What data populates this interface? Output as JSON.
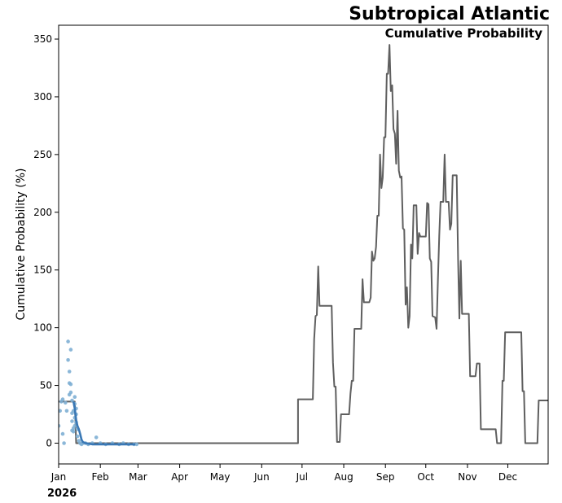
{
  "chart_data": {
    "type": "line",
    "title": "Subtropical Atlantic",
    "subtitle": "Cumulative Probability",
    "ylabel": "Cumulative Probability (%)",
    "xlabel": "",
    "year_label": "2026",
    "x_tick_labels": [
      "Jan",
      "Feb",
      "Mar",
      "Apr",
      "May",
      "Jun",
      "Jul",
      "Aug",
      "Sep",
      "Oct",
      "Nov",
      "Dec"
    ],
    "x_tick_days": [
      0,
      31,
      59,
      90,
      120,
      151,
      181,
      212,
      243,
      273,
      304,
      334
    ],
    "xlim": [
      0,
      364
    ],
    "ylim": [
      -18,
      362
    ],
    "y_ticks": [
      0,
      50,
      100,
      150,
      200,
      250,
      300,
      350
    ],
    "grid": false,
    "colors": {
      "climatology": "#5f5f5f",
      "forecast": "#3a78b5",
      "members": "#7eafd4"
    },
    "series": [
      {
        "style": "step-line",
        "points": [
          [
            0,
            36
          ],
          [
            12,
            36
          ],
          [
            13,
            0
          ],
          [
            178,
            0
          ],
          [
            178,
            38
          ],
          [
            189,
            38
          ],
          [
            190,
            90
          ],
          [
            191,
            110
          ],
          [
            192,
            111
          ],
          [
            193,
            153
          ],
          [
            194,
            119
          ],
          [
            203,
            119
          ],
          [
            204,
            70
          ],
          [
            205,
            49
          ],
          [
            206,
            49
          ],
          [
            207,
            1
          ],
          [
            209,
            1
          ],
          [
            210,
            25
          ],
          [
            216,
            25
          ],
          [
            217,
            43
          ],
          [
            218,
            54
          ],
          [
            219,
            54
          ],
          [
            220,
            99
          ],
          [
            225,
            99
          ],
          [
            226,
            142
          ],
          [
            227,
            122
          ],
          [
            231,
            122
          ],
          [
            232,
            126
          ],
          [
            233,
            166
          ],
          [
            234,
            158
          ],
          [
            235,
            160
          ],
          [
            236,
            170
          ],
          [
            237,
            197
          ],
          [
            238,
            197
          ],
          [
            239,
            250
          ],
          [
            240,
            221
          ],
          [
            241,
            230
          ],
          [
            242,
            265
          ],
          [
            243,
            265
          ],
          [
            244,
            320
          ],
          [
            245,
            320
          ],
          [
            246,
            345
          ],
          [
            247,
            305
          ],
          [
            248,
            310
          ],
          [
            249,
            272
          ],
          [
            250,
            268
          ],
          [
            251,
            242
          ],
          [
            252,
            288
          ],
          [
            253,
            236
          ],
          [
            254,
            230
          ],
          [
            255,
            231
          ],
          [
            256,
            186
          ],
          [
            257,
            185
          ],
          [
            258,
            120
          ],
          [
            259,
            135
          ],
          [
            260,
            100
          ],
          [
            261,
            110
          ],
          [
            262,
            172
          ],
          [
            263,
            160
          ],
          [
            264,
            206
          ],
          [
            266,
            206
          ],
          [
            267,
            164
          ],
          [
            268,
            182
          ],
          [
            269,
            179
          ],
          [
            273,
            179
          ],
          [
            274,
            208
          ],
          [
            275,
            207
          ],
          [
            276,
            160
          ],
          [
            277,
            157
          ],
          [
            278,
            110
          ],
          [
            280,
            109
          ],
          [
            281,
            99
          ],
          [
            282,
            140
          ],
          [
            283,
            180
          ],
          [
            284,
            209
          ],
          [
            286,
            209
          ],
          [
            287,
            250
          ],
          [
            288,
            209
          ],
          [
            290,
            209
          ],
          [
            291,
            185
          ],
          [
            292,
            190
          ],
          [
            293,
            232
          ],
          [
            296,
            232
          ],
          [
            297,
            160
          ],
          [
            298,
            108
          ],
          [
            299,
            158
          ],
          [
            300,
            112
          ],
          [
            305,
            112
          ],
          [
            306,
            58
          ],
          [
            310,
            58
          ],
          [
            311,
            69
          ],
          [
            313,
            69
          ],
          [
            314,
            12
          ],
          [
            325,
            12
          ],
          [
            326,
            0
          ],
          [
            329,
            0
          ],
          [
            330,
            54
          ],
          [
            331,
            54
          ],
          [
            332,
            96
          ],
          [
            344,
            96
          ],
          [
            345,
            45
          ],
          [
            346,
            45
          ],
          [
            347,
            0
          ],
          [
            356,
            0
          ],
          [
            357,
            37
          ],
          [
            364,
            37
          ]
        ]
      },
      {
        "style": "forecast-line",
        "points": [
          [
            11,
            36
          ],
          [
            12,
            30
          ],
          [
            13,
            20
          ],
          [
            14,
            15
          ],
          [
            15,
            12
          ],
          [
            16,
            8
          ],
          [
            17,
            3
          ],
          [
            18,
            1
          ],
          [
            20,
            0
          ],
          [
            25,
            -1
          ],
          [
            35,
            -1
          ],
          [
            45,
            -1
          ],
          [
            55,
            -1
          ],
          [
            57,
            -1
          ]
        ]
      },
      {
        "style": "ensemble-members",
        "points": [
          [
            0,
            15
          ],
          [
            1,
            28
          ],
          [
            2,
            36
          ],
          [
            3,
            8
          ],
          [
            3,
            38
          ],
          [
            4,
            0
          ],
          [
            5,
            35
          ],
          [
            6,
            28
          ],
          [
            7,
            88
          ],
          [
            7,
            72
          ],
          [
            8,
            62
          ],
          [
            8,
            42
          ],
          [
            8,
            52
          ],
          [
            9,
            81
          ],
          [
            9,
            44
          ],
          [
            9,
            51
          ],
          [
            10,
            37
          ],
          [
            10,
            26
          ],
          [
            10,
            11
          ],
          [
            10,
            19
          ],
          [
            11,
            13
          ],
          [
            11,
            28
          ],
          [
            11,
            10
          ],
          [
            12,
            40
          ],
          [
            12,
            34
          ],
          [
            12,
            22
          ],
          [
            12,
            15
          ],
          [
            13,
            30
          ],
          [
            13,
            25
          ],
          [
            13,
            18
          ],
          [
            14,
            12
          ],
          [
            14,
            6
          ],
          [
            15,
            2
          ],
          [
            16,
            0
          ],
          [
            17,
            -1
          ],
          [
            18,
            0
          ],
          [
            20,
            0
          ],
          [
            22,
            -1
          ],
          [
            25,
            0
          ],
          [
            28,
            5
          ],
          [
            31,
            0
          ],
          [
            35,
            -1
          ],
          [
            40,
            0
          ],
          [
            45,
            -1
          ],
          [
            48,
            0
          ],
          [
            52,
            -1
          ],
          [
            56,
            -1
          ],
          [
            58,
            -1
          ]
        ]
      }
    ]
  }
}
